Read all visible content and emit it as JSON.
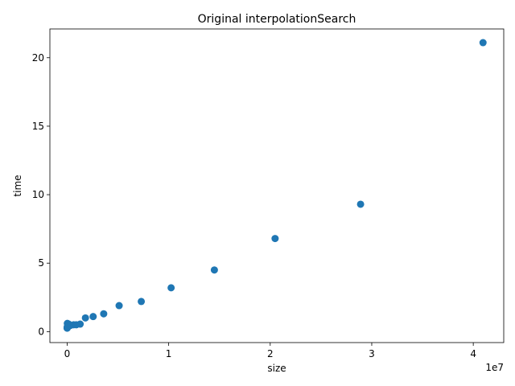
{
  "chart_data": {
    "type": "scatter",
    "title": "Original interpolationSearch",
    "xlabel": "size",
    "ylabel": "time",
    "x_offset_label": "1e7",
    "xlim": [
      -1700000.0,
      43000000.0
    ],
    "ylim": [
      -0.8,
      22.1
    ],
    "x_ticks": [
      0,
      10000000,
      20000000,
      30000000,
      40000000
    ],
    "x_tick_labels": [
      "0",
      "1",
      "2",
      "3",
      "4"
    ],
    "y_ticks": [
      0,
      5,
      10,
      15,
      20
    ],
    "y_tick_labels": [
      "0",
      "5",
      "10",
      "15",
      "20"
    ],
    "grid": false,
    "marker_color": "#1f77b4",
    "points": [
      {
        "x": 1000,
        "y": 0.25
      },
      {
        "x": 2000,
        "y": 0.3
      },
      {
        "x": 5000,
        "y": 0.28
      },
      {
        "x": 10000,
        "y": 0.35
      },
      {
        "x": 20000,
        "y": 0.6
      },
      {
        "x": 40000,
        "y": 0.32
      },
      {
        "x": 80000,
        "y": 0.4
      },
      {
        "x": 160000,
        "y": 0.55
      },
      {
        "x": 320000,
        "y": 0.45
      },
      {
        "x": 640000,
        "y": 0.5
      },
      {
        "x": 900000,
        "y": 0.5
      },
      {
        "x": 1280000,
        "y": 0.55
      },
      {
        "x": 1800000,
        "y": 1.0
      },
      {
        "x": 2560000,
        "y": 1.1
      },
      {
        "x": 3600000,
        "y": 1.3
      },
      {
        "x": 5120000,
        "y": 1.9
      },
      {
        "x": 7300000,
        "y": 2.2
      },
      {
        "x": 10240000,
        "y": 3.2
      },
      {
        "x": 14500000,
        "y": 4.5
      },
      {
        "x": 20480000,
        "y": 6.8
      },
      {
        "x": 28900000,
        "y": 9.3
      },
      {
        "x": 40960000,
        "y": 21.1
      }
    ]
  }
}
